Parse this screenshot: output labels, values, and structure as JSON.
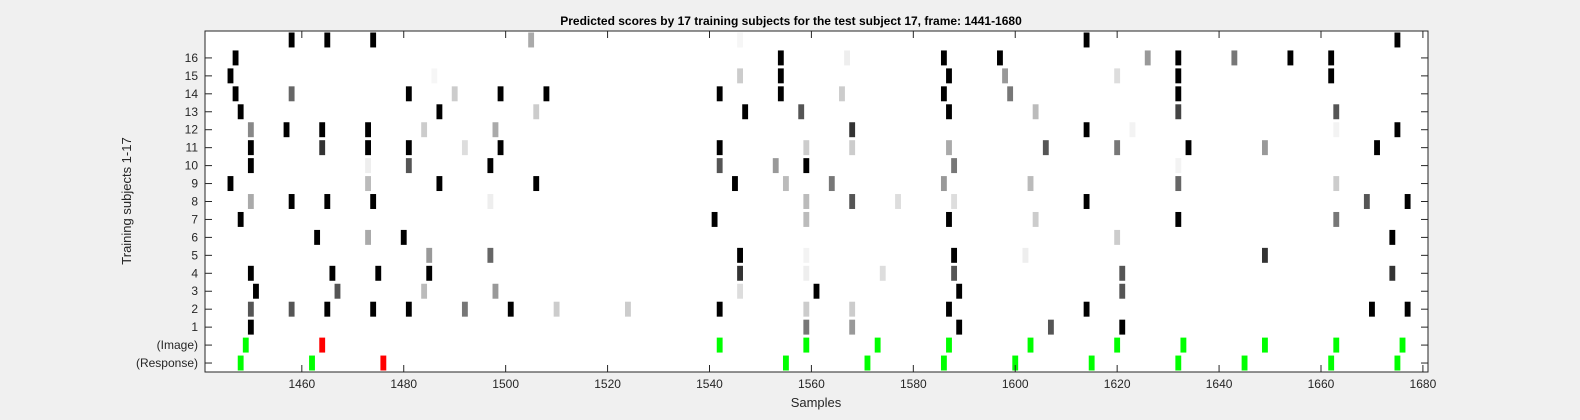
{
  "chart_data": {
    "type": "heatmap",
    "title": "Predicted scores by 17 training subjects for the test subject 17, frame: 1441-1680",
    "xlabel": "Samples",
    "ylabel": "Training subjects 1-17",
    "xlim": [
      1441,
      1680
    ],
    "x_ticks": [
      1460,
      1480,
      1500,
      1520,
      1540,
      1560,
      1580,
      1600,
      1620,
      1640,
      1660,
      1680
    ],
    "rows": [
      "(Response)",
      "(Image)",
      "1",
      "2",
      "3",
      "4",
      "5",
      "6",
      "7",
      "8",
      "9",
      "10",
      "11",
      "12",
      "13",
      "14",
      "15",
      "16",
      ""
    ],
    "grid": false,
    "colors": {
      "background": "#ffffff",
      "correct": "#00ff00",
      "incorrect": "#ff0000",
      "score_dark": "#000000"
    },
    "cells": [
      {
        "row": "(Response)",
        "x": 1448,
        "color": "#00ff00"
      },
      {
        "row": "(Response)",
        "x": 1462,
        "color": "#00ff00"
      },
      {
        "row": "(Response)",
        "x": 1476,
        "color": "#ff0000"
      },
      {
        "row": "(Response)",
        "x": 1555,
        "color": "#00ff00"
      },
      {
        "row": "(Response)",
        "x": 1571,
        "color": "#00ff00"
      },
      {
        "row": "(Response)",
        "x": 1586,
        "color": "#00ff00"
      },
      {
        "row": "(Response)",
        "x": 1600,
        "color": "#00ff00"
      },
      {
        "row": "(Response)",
        "x": 1615,
        "color": "#00ff00"
      },
      {
        "row": "(Response)",
        "x": 1632,
        "color": "#00ff00"
      },
      {
        "row": "(Response)",
        "x": 1645,
        "color": "#00ff00"
      },
      {
        "row": "(Response)",
        "x": 1662,
        "color": "#00ff00"
      },
      {
        "row": "(Response)",
        "x": 1675,
        "color": "#00ff00"
      },
      {
        "row": "(Image)",
        "x": 1449,
        "color": "#00ff00"
      },
      {
        "row": "(Image)",
        "x": 1464,
        "color": "#ff0000"
      },
      {
        "row": "(Image)",
        "x": 1542,
        "color": "#00ff00"
      },
      {
        "row": "(Image)",
        "x": 1559,
        "color": "#00ff00"
      },
      {
        "row": "(Image)",
        "x": 1573,
        "color": "#00ff00"
      },
      {
        "row": "(Image)",
        "x": 1587,
        "color": "#00ff00"
      },
      {
        "row": "(Image)",
        "x": 1603,
        "color": "#00ff00"
      },
      {
        "row": "(Image)",
        "x": 1620,
        "color": "#00ff00"
      },
      {
        "row": "(Image)",
        "x": 1633,
        "color": "#00ff00"
      },
      {
        "row": "(Image)",
        "x": 1649,
        "color": "#00ff00"
      },
      {
        "row": "(Image)",
        "x": 1663,
        "color": "#00ff00"
      },
      {
        "row": "(Image)",
        "x": 1676,
        "color": "#00ff00"
      },
      {
        "row": "1",
        "x": 1450,
        "color": "#000000"
      },
      {
        "row": "1",
        "x": 1559,
        "color": "#777777"
      },
      {
        "row": "1",
        "x": 1568,
        "color": "#999999"
      },
      {
        "row": "1",
        "x": 1589,
        "color": "#000000"
      },
      {
        "row": "1",
        "x": 1607,
        "color": "#555555"
      },
      {
        "row": "1",
        "x": 1621,
        "color": "#000000"
      },
      {
        "row": "2",
        "x": 1450,
        "color": "#555555"
      },
      {
        "row": "2",
        "x": 1458,
        "color": "#555555"
      },
      {
        "row": "2",
        "x": 1465,
        "color": "#000000"
      },
      {
        "row": "2",
        "x": 1474,
        "color": "#000000"
      },
      {
        "row": "2",
        "x": 1481,
        "color": "#000000"
      },
      {
        "row": "2",
        "x": 1492,
        "color": "#777777"
      },
      {
        "row": "2",
        "x": 1501,
        "color": "#000000"
      },
      {
        "row": "2",
        "x": 1510,
        "color": "#cccccc"
      },
      {
        "row": "2",
        "x": 1524,
        "color": "#cccccc"
      },
      {
        "row": "2",
        "x": 1542,
        "color": "#000000"
      },
      {
        "row": "2",
        "x": 1559,
        "color": "#cccccc"
      },
      {
        "row": "2",
        "x": 1568,
        "color": "#cccccc"
      },
      {
        "row": "2",
        "x": 1587,
        "color": "#000000"
      },
      {
        "row": "2",
        "x": 1614,
        "color": "#000000"
      },
      {
        "row": "2",
        "x": 1670,
        "color": "#000000"
      },
      {
        "row": "2",
        "x": 1677,
        "color": "#000000"
      },
      {
        "row": "3",
        "x": 1451,
        "color": "#000000"
      },
      {
        "row": "3",
        "x": 1467,
        "color": "#555555"
      },
      {
        "row": "3",
        "x": 1484,
        "color": "#bbbbbb"
      },
      {
        "row": "3",
        "x": 1498,
        "color": "#999999"
      },
      {
        "row": "3",
        "x": 1546,
        "color": "#dddddd"
      },
      {
        "row": "3",
        "x": 1561,
        "color": "#000000"
      },
      {
        "row": "3",
        "x": 1589,
        "color": "#000000"
      },
      {
        "row": "3",
        "x": 1621,
        "color": "#555555"
      },
      {
        "row": "4",
        "x": 1450,
        "color": "#000000"
      },
      {
        "row": "4",
        "x": 1466,
        "color": "#000000"
      },
      {
        "row": "4",
        "x": 1475,
        "color": "#000000"
      },
      {
        "row": "4",
        "x": 1485,
        "color": "#000000"
      },
      {
        "row": "4",
        "x": 1546,
        "color": "#333333"
      },
      {
        "row": "4",
        "x": 1559,
        "color": "#eeeeee"
      },
      {
        "row": "4",
        "x": 1574,
        "color": "#dddddd"
      },
      {
        "row": "4",
        "x": 1588,
        "color": "#555555"
      },
      {
        "row": "4",
        "x": 1621,
        "color": "#555555"
      },
      {
        "row": "4",
        "x": 1674,
        "color": "#333333"
      },
      {
        "row": "5",
        "x": 1485,
        "color": "#999999"
      },
      {
        "row": "5",
        "x": 1497,
        "color": "#666666"
      },
      {
        "row": "5",
        "x": 1546,
        "color": "#000000"
      },
      {
        "row": "5",
        "x": 1559,
        "color": "#f3f3f3"
      },
      {
        "row": "5",
        "x": 1588,
        "color": "#000000"
      },
      {
        "row": "5",
        "x": 1602,
        "color": "#eeeeee"
      },
      {
        "row": "5",
        "x": 1649,
        "color": "#333333"
      },
      {
        "row": "6",
        "x": 1463,
        "color": "#000000"
      },
      {
        "row": "6",
        "x": 1473,
        "color": "#aaaaaa"
      },
      {
        "row": "6",
        "x": 1480,
        "color": "#000000"
      },
      {
        "row": "6",
        "x": 1620,
        "color": "#cccccc"
      },
      {
        "row": "6",
        "x": 1674,
        "color": "#000000"
      },
      {
        "row": "7",
        "x": 1448,
        "color": "#000000"
      },
      {
        "row": "7",
        "x": 1541,
        "color": "#000000"
      },
      {
        "row": "7",
        "x": 1559,
        "color": "#bbbbbb"
      },
      {
        "row": "7",
        "x": 1587,
        "color": "#000000"
      },
      {
        "row": "7",
        "x": 1604,
        "color": "#cccccc"
      },
      {
        "row": "7",
        "x": 1632,
        "color": "#000000"
      },
      {
        "row": "7",
        "x": 1663,
        "color": "#777777"
      },
      {
        "row": "8",
        "x": 1450,
        "color": "#aaaaaa"
      },
      {
        "row": "8",
        "x": 1458,
        "color": "#000000"
      },
      {
        "row": "8",
        "x": 1465,
        "color": "#000000"
      },
      {
        "row": "8",
        "x": 1474,
        "color": "#000000"
      },
      {
        "row": "8",
        "x": 1497,
        "color": "#eeeeee"
      },
      {
        "row": "8",
        "x": 1559,
        "color": "#bbbbbb"
      },
      {
        "row": "8",
        "x": 1568,
        "color": "#555555"
      },
      {
        "row": "8",
        "x": 1577,
        "color": "#dddddd"
      },
      {
        "row": "8",
        "x": 1588,
        "color": "#dddddd"
      },
      {
        "row": "8",
        "x": 1614,
        "color": "#000000"
      },
      {
        "row": "8",
        "x": 1669,
        "color": "#555555"
      },
      {
        "row": "8",
        "x": 1677,
        "color": "#000000"
      },
      {
        "row": "9",
        "x": 1446,
        "color": "#000000"
      },
      {
        "row": "9",
        "x": 1473,
        "color": "#bbbbbb"
      },
      {
        "row": "9",
        "x": 1487,
        "color": "#000000"
      },
      {
        "row": "9",
        "x": 1506,
        "color": "#000000"
      },
      {
        "row": "9",
        "x": 1545,
        "color": "#000000"
      },
      {
        "row": "9",
        "x": 1555,
        "color": "#bbbbbb"
      },
      {
        "row": "9",
        "x": 1564,
        "color": "#777777"
      },
      {
        "row": "9",
        "x": 1586,
        "color": "#999999"
      },
      {
        "row": "9",
        "x": 1603,
        "color": "#bbbbbb"
      },
      {
        "row": "9",
        "x": 1632,
        "color": "#666666"
      },
      {
        "row": "9",
        "x": 1663,
        "color": "#cccccc"
      },
      {
        "row": "10",
        "x": 1450,
        "color": "#000000"
      },
      {
        "row": "10",
        "x": 1473,
        "color": "#eeeeee"
      },
      {
        "row": "10",
        "x": 1481,
        "color": "#555555"
      },
      {
        "row": "10",
        "x": 1497,
        "color": "#000000"
      },
      {
        "row": "10",
        "x": 1542,
        "color": "#555555"
      },
      {
        "row": "10",
        "x": 1553,
        "color": "#999999"
      },
      {
        "row": "10",
        "x": 1559,
        "color": "#000000"
      },
      {
        "row": "10",
        "x": 1588,
        "color": "#777777"
      },
      {
        "row": "10",
        "x": 1632,
        "color": "#f3f3f3"
      },
      {
        "row": "11",
        "x": 1450,
        "color": "#000000"
      },
      {
        "row": "11",
        "x": 1464,
        "color": "#333333"
      },
      {
        "row": "11",
        "x": 1473,
        "color": "#000000"
      },
      {
        "row": "11",
        "x": 1481,
        "color": "#000000"
      },
      {
        "row": "11",
        "x": 1492,
        "color": "#dddddd"
      },
      {
        "row": "11",
        "x": 1499,
        "color": "#000000"
      },
      {
        "row": "11",
        "x": 1542,
        "color": "#000000"
      },
      {
        "row": "11",
        "x": 1559,
        "color": "#cccccc"
      },
      {
        "row": "11",
        "x": 1568,
        "color": "#cccccc"
      },
      {
        "row": "11",
        "x": 1587,
        "color": "#aaaaaa"
      },
      {
        "row": "11",
        "x": 1606,
        "color": "#555555"
      },
      {
        "row": "11",
        "x": 1620,
        "color": "#777777"
      },
      {
        "row": "11",
        "x": 1634,
        "color": "#000000"
      },
      {
        "row": "11",
        "x": 1649,
        "color": "#999999"
      },
      {
        "row": "11",
        "x": 1671,
        "color": "#000000"
      },
      {
        "row": "12",
        "x": 1450,
        "color": "#888888"
      },
      {
        "row": "12",
        "x": 1457,
        "color": "#000000"
      },
      {
        "row": "12",
        "x": 1464,
        "color": "#000000"
      },
      {
        "row": "12",
        "x": 1473,
        "color": "#000000"
      },
      {
        "row": "12",
        "x": 1484,
        "color": "#cccccc"
      },
      {
        "row": "12",
        "x": 1498,
        "color": "#aaaaaa"
      },
      {
        "row": "12",
        "x": 1568,
        "color": "#333333"
      },
      {
        "row": "12",
        "x": 1614,
        "color": "#000000"
      },
      {
        "row": "12",
        "x": 1623,
        "color": "#f3f3f3"
      },
      {
        "row": "12",
        "x": 1663,
        "color": "#f3f3f3"
      },
      {
        "row": "12",
        "x": 1675,
        "color": "#000000"
      },
      {
        "row": "13",
        "x": 1448,
        "color": "#000000"
      },
      {
        "row": "13",
        "x": 1487,
        "color": "#000000"
      },
      {
        "row": "13",
        "x": 1506,
        "color": "#cccccc"
      },
      {
        "row": "13",
        "x": 1547,
        "color": "#000000"
      },
      {
        "row": "13",
        "x": 1558,
        "color": "#555555"
      },
      {
        "row": "13",
        "x": 1587,
        "color": "#000000"
      },
      {
        "row": "13",
        "x": 1604,
        "color": "#bbbbbb"
      },
      {
        "row": "13",
        "x": 1632,
        "color": "#444444"
      },
      {
        "row": "13",
        "x": 1663,
        "color": "#555555"
      },
      {
        "row": "14",
        "x": 1447,
        "color": "#000000"
      },
      {
        "row": "14",
        "x": 1458,
        "color": "#666666"
      },
      {
        "row": "14",
        "x": 1481,
        "color": "#000000"
      },
      {
        "row": "14",
        "x": 1490,
        "color": "#cccccc"
      },
      {
        "row": "14",
        "x": 1499,
        "color": "#000000"
      },
      {
        "row": "14",
        "x": 1508,
        "color": "#000000"
      },
      {
        "row": "14",
        "x": 1542,
        "color": "#000000"
      },
      {
        "row": "14",
        "x": 1554,
        "color": "#000000"
      },
      {
        "row": "14",
        "x": 1566,
        "color": "#cccccc"
      },
      {
        "row": "14",
        "x": 1586,
        "color": "#000000"
      },
      {
        "row": "14",
        "x": 1599,
        "color": "#777777"
      },
      {
        "row": "14",
        "x": 1632,
        "color": "#000000"
      },
      {
        "row": "15",
        "x": 1446,
        "color": "#000000"
      },
      {
        "row": "15",
        "x": 1486,
        "color": "#f6f6f6"
      },
      {
        "row": "15",
        "x": 1546,
        "color": "#cccccc"
      },
      {
        "row": "15",
        "x": 1554,
        "color": "#000000"
      },
      {
        "row": "15",
        "x": 1587,
        "color": "#000000"
      },
      {
        "row": "15",
        "x": 1598,
        "color": "#999999"
      },
      {
        "row": "15",
        "x": 1620,
        "color": "#dddddd"
      },
      {
        "row": "15",
        "x": 1632,
        "color": "#000000"
      },
      {
        "row": "15",
        "x": 1662,
        "color": "#000000"
      },
      {
        "row": "16",
        "x": 1447,
        "color": "#000000"
      },
      {
        "row": "16",
        "x": 1554,
        "color": "#000000"
      },
      {
        "row": "16",
        "x": 1567,
        "color": "#eeeeee"
      },
      {
        "row": "16",
        "x": 1586,
        "color": "#000000"
      },
      {
        "row": "16",
        "x": 1597,
        "color": "#000000"
      },
      {
        "row": "16",
        "x": 1626,
        "color": "#999999"
      },
      {
        "row": "16",
        "x": 1632,
        "color": "#000000"
      },
      {
        "row": "16",
        "x": 1643,
        "color": "#777777"
      },
      {
        "row": "16",
        "x": 1654,
        "color": "#000000"
      },
      {
        "row": "16",
        "x": 1662,
        "color": "#000000"
      },
      {
        "row": "",
        "x": 1458,
        "color": "#000000"
      },
      {
        "row": "",
        "x": 1465,
        "color": "#000000"
      },
      {
        "row": "",
        "x": 1474,
        "color": "#000000"
      },
      {
        "row": "",
        "x": 1505,
        "color": "#aaaaaa"
      },
      {
        "row": "",
        "x": 1546,
        "color": "#f6f6f6"
      },
      {
        "row": "",
        "x": 1614,
        "color": "#000000"
      },
      {
        "row": "",
        "x": 1675,
        "color": "#000000"
      }
    ]
  }
}
